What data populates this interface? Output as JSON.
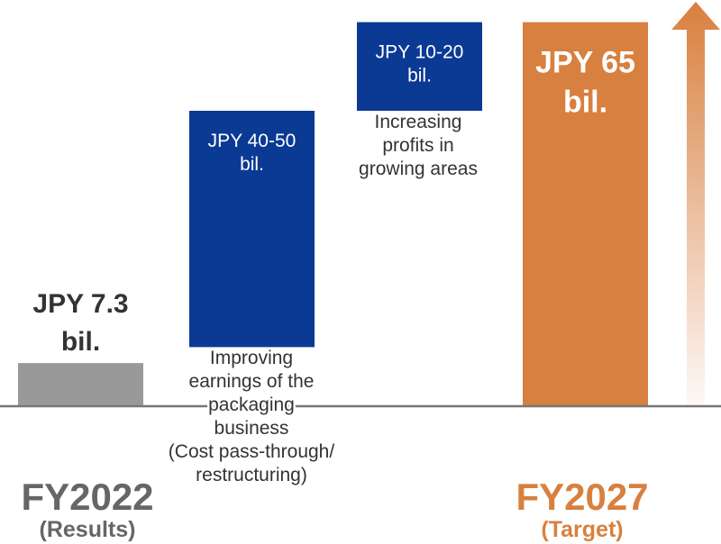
{
  "chart_data": {
    "type": "bar",
    "subtype": "waterfall",
    "unit": "JPY bil.",
    "ylim": [
      0,
      75
    ],
    "grid": false,
    "legend": "none",
    "steps": [
      {
        "id": "fy2022",
        "kind": "total",
        "base": 0,
        "value": 7.3,
        "label_lines": [
          "JPY 7.3",
          "bil."
        ],
        "label_position": "above",
        "color": "#999999",
        "label_color": "#333333"
      },
      {
        "id": "packaging",
        "kind": "increment",
        "base": 10,
        "value": 40,
        "label_lines": [
          "JPY 40-50",
          "bil."
        ],
        "label_position": "inside",
        "color": "#0B3A94",
        "label_color": "#ffffff"
      },
      {
        "id": "growth",
        "kind": "increment",
        "base": 50,
        "value": 15,
        "label_lines": [
          "JPY 10-20",
          "bil."
        ],
        "label_position": "inside",
        "color": "#0B3A94",
        "label_color": "#ffffff"
      },
      {
        "id": "fy2027",
        "kind": "total",
        "base": 0,
        "value": 65,
        "label_lines": [
          "JPY 65",
          "bil."
        ],
        "label_position": "inside",
        "color": "#D8803F",
        "label_color": "#ffffff"
      }
    ],
    "annotations": [
      {
        "id": "packaging-note",
        "lines": [
          "Improving",
          "earnings of the",
          "packaging",
          "business",
          "(Cost pass-through/",
          "restructuring)"
        ]
      },
      {
        "id": "growth-note",
        "lines": [
          "Increasing",
          "profits in",
          "growing areas"
        ]
      }
    ],
    "categories": [
      {
        "id": "fy2022-cat",
        "title": "FY2022",
        "subtitle": "(Results)",
        "color": "#666666"
      },
      {
        "id": "fy2027-cat",
        "title": "FY2027",
        "subtitle": "(Target)",
        "color": "#D8803F"
      }
    ],
    "trend_arrow": {
      "direction": "up",
      "color": "#D8803F"
    }
  }
}
